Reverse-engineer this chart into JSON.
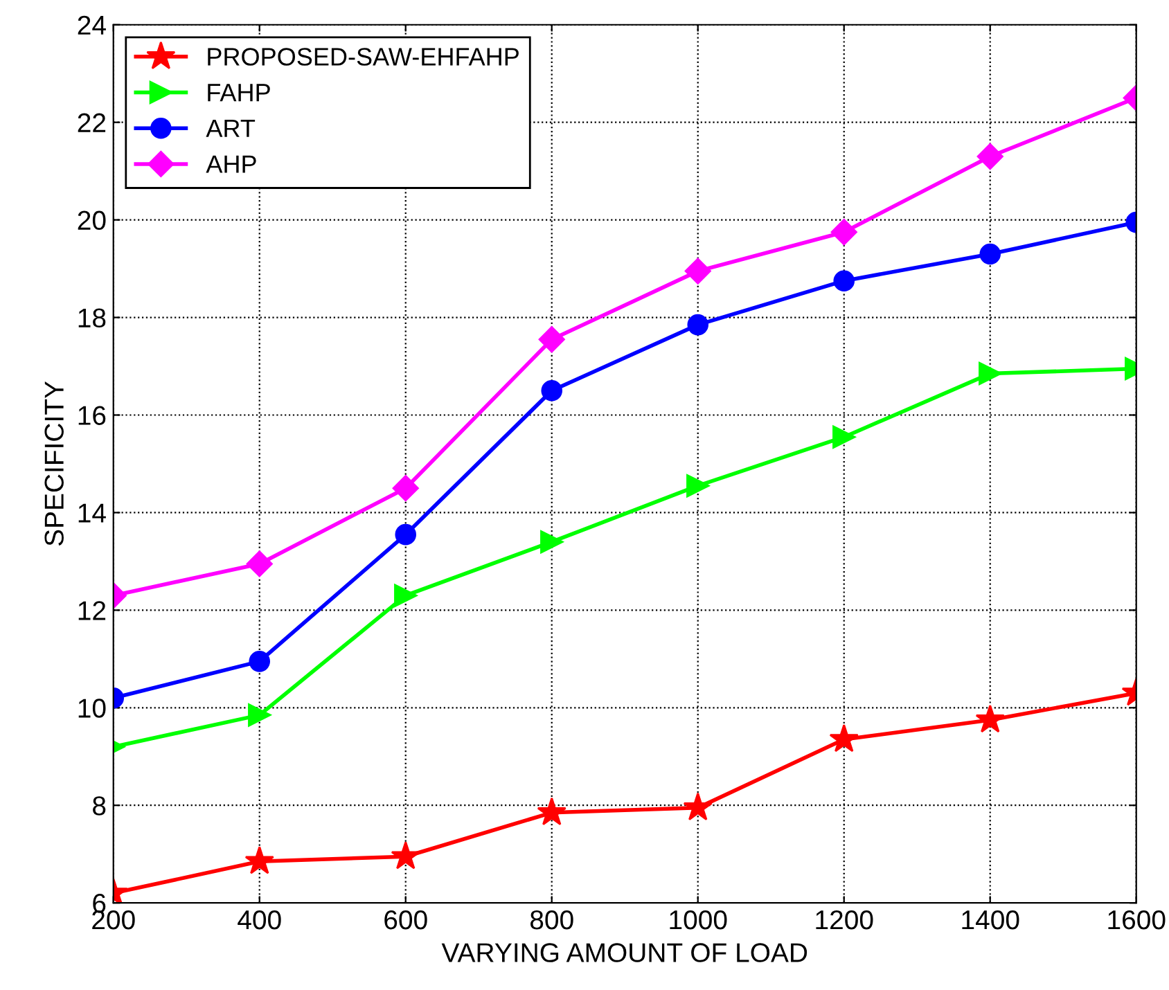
{
  "chart_data": {
    "type": "line",
    "xlabel": "VARYING AMOUNT OF LOAD",
    "ylabel": "SPECIFICITY",
    "x": [
      200,
      400,
      600,
      800,
      1000,
      1200,
      1400,
      1600
    ],
    "series": [
      {
        "name": "PROPOSED-SAW-EHFAHP",
        "color": "#ff0000",
        "marker": "star",
        "values": [
          6.2,
          6.85,
          6.95,
          7.85,
          7.95,
          9.35,
          9.75,
          10.3
        ]
      },
      {
        "name": "FAHP",
        "color": "#00ff00",
        "marker": "triangle",
        "values": [
          9.2,
          9.85,
          12.3,
          13.4,
          14.55,
          15.55,
          16.85,
          16.95
        ]
      },
      {
        "name": "ART",
        "color": "#0000ff",
        "marker": "circle",
        "values": [
          10.2,
          10.95,
          13.55,
          16.5,
          17.85,
          18.75,
          19.3,
          19.95
        ]
      },
      {
        "name": "AHP",
        "color": "#ff00ff",
        "marker": "diamond",
        "values": [
          12.3,
          12.95,
          14.5,
          17.55,
          18.95,
          19.75,
          21.3,
          22.5
        ]
      }
    ],
    "xlim": [
      200,
      1600
    ],
    "xticks": [
      200,
      400,
      600,
      800,
      1000,
      1200,
      1400,
      1600
    ],
    "ylim": [
      6,
      24
    ],
    "yticks": [
      6,
      8,
      10,
      12,
      14,
      16,
      18,
      20,
      22,
      24
    ],
    "grid": true,
    "legend": "top left",
    "line_style": "solid"
  }
}
